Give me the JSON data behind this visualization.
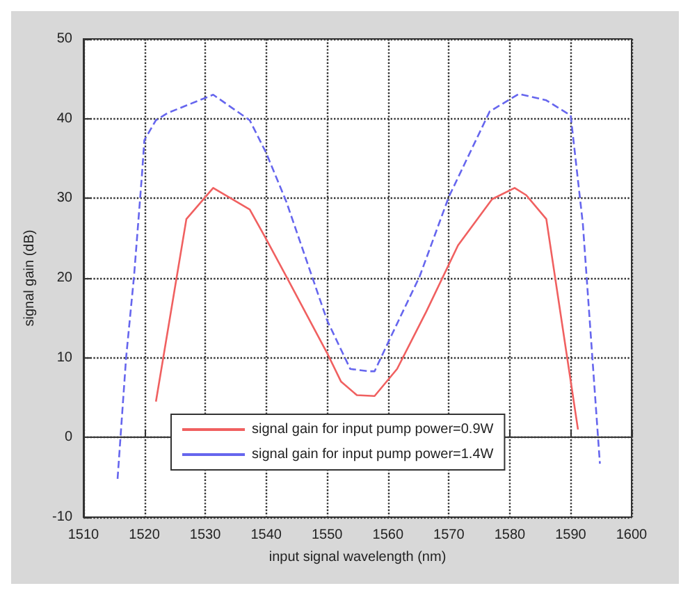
{
  "chart_data": {
    "type": "line",
    "xlabel": "input signal wavelength (nm)",
    "ylabel": "signal gain (dB)",
    "xlim": [
      1510,
      1600
    ],
    "xticks": [
      1510,
      1520,
      1530,
      1540,
      1550,
      1560,
      1570,
      1580,
      1590,
      1600
    ],
    "ylim": [
      -10,
      50
    ],
    "yticks": [
      -10,
      0,
      10,
      20,
      30,
      40,
      50
    ],
    "grid": true,
    "legend": "bottom",
    "series": [
      {
        "name": "signal gain for input pump power=0.9W",
        "color": "#f06060",
        "line_style": "solid",
        "x": [
          1521.9,
          1526.9,
          1531.3,
          1537.3,
          1540,
          1543.3,
          1550,
          1552.3,
          1554.9,
          1557.8,
          1561.5,
          1566.3,
          1571.5,
          1577.1,
          1580.8,
          1582.7,
          1586,
          1591.2
        ],
        "values": [
          4.5,
          27.4,
          31.3,
          28.6,
          24.9,
          20.2,
          10.6,
          7,
          5.3,
          5.2,
          8.6,
          15.8,
          24.1,
          29.9,
          31.3,
          30.4,
          27.4,
          1.0
        ]
      },
      {
        "name": "signal gain for input pump power=1.4W",
        "color": "#6666ee",
        "line_style": "dashed",
        "x": [
          1515.6,
          1517,
          1518.3,
          1519.6,
          1520,
          1521.9,
          1523.8,
          1531.3,
          1537.3,
          1540,
          1543.3,
          1550,
          1553.8,
          1556.8,
          1557.8,
          1560.7,
          1565.2,
          1570,
          1576.7,
          1581.5,
          1586,
          1590,
          1592,
          1594.8
        ],
        "values": [
          -5.2,
          10,
          20.2,
          32.9,
          37.3,
          39.8,
          40.7,
          43,
          39.8,
          35.7,
          29.6,
          14.7,
          8.6,
          8.3,
          8.3,
          13,
          20.2,
          30.2,
          40.9,
          43.1,
          42.3,
          40.4,
          26.8,
          -3.3
        ]
      }
    ]
  }
}
